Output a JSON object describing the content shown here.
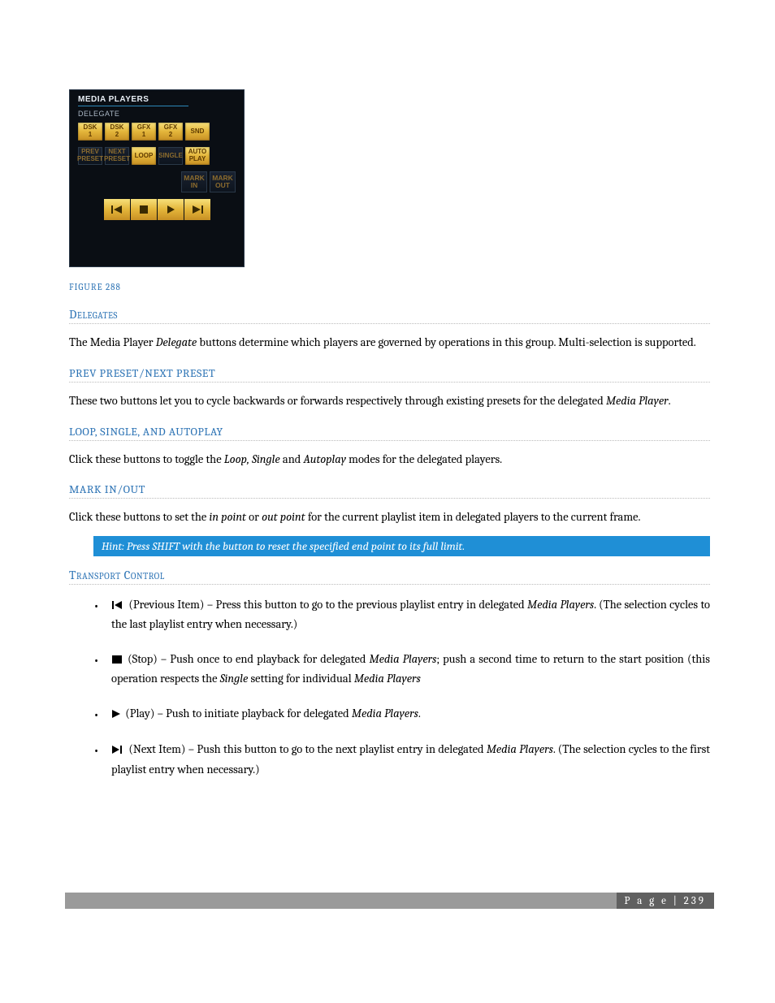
{
  "panel": {
    "title": "MEDIA PLAYERS",
    "subtitle": "DELEGATE",
    "row1": [
      {
        "l1": "DSK",
        "l2": "1",
        "style": "lit"
      },
      {
        "l1": "DSK",
        "l2": "2",
        "style": "lit"
      },
      {
        "l1": "GFX",
        "l2": "1",
        "style": "lit"
      },
      {
        "l1": "GFX",
        "l2": "2",
        "style": "lit"
      },
      {
        "l1": "SND",
        "l2": "",
        "style": "lit"
      }
    ],
    "row2": [
      {
        "l1": "PREV",
        "l2": "PRESET",
        "style": "dark"
      },
      {
        "l1": "NEXT",
        "l2": "PRESET",
        "style": "dark"
      },
      {
        "l1": "LOOP",
        "l2": "",
        "style": "lit"
      },
      {
        "l1": "SINGLE",
        "l2": "",
        "style": "dark"
      },
      {
        "l1": "AUTO",
        "l2": "PLAY",
        "style": "lit"
      }
    ],
    "row3": [
      {
        "l1": "MARK",
        "l2": "IN",
        "style": "dark"
      },
      {
        "l1": "MARK",
        "l2": "OUT",
        "style": "dark"
      }
    ],
    "transport_icons": [
      "prev",
      "stop",
      "play",
      "next"
    ],
    "colors": {
      "lit": "#e3b53a",
      "dark": "#0d141e",
      "panel_bg": "#0a0e14"
    }
  },
  "caption": "FIGURE 288",
  "sections": {
    "delegates": {
      "title": "Delegates",
      "body": "The Media Player Delegate buttons determine which players are governed by operations in this group. Multi-selection is supported."
    },
    "prev_next": {
      "title": "PREV PRESET/NEXT PRESET",
      "body": "These two buttons let you to cycle backwards or forwards respectively through existing presets for the delegated Media Player."
    },
    "loop": {
      "title": "LOOP, SINGLE, AND AUTOPLAY",
      "body": "Click these buttons to toggle the Loop, Single and Autoplay modes for the delegated players."
    },
    "mark": {
      "title": "MARK IN/OUT",
      "body": "Click these buttons to set the in point or out point for the current playlist item in delegated players to the current frame."
    },
    "hint": "Hint: Press SHIFT with the button to reset the specified end point to its full limit.",
    "transport": {
      "title": "Transport Control",
      "items": [
        {
          "icon": "prev",
          "text": " (Previous Item) – Press this button to go to the previous playlist entry in delegated Media Players. (The selection cycles to the last playlist entry when necessary.)"
        },
        {
          "icon": "stop",
          "text": " (Stop) – Push once to end playback for delegated Media Players; push a second time to return to the start position (this operation respects the Single setting for individual Media Players"
        },
        {
          "icon": "play",
          "text": " (Play) – Push to initiate playback for delegated Media Players."
        },
        {
          "icon": "next",
          "text": " (Next Item) – Push this button to go to the next playlist entry in delegated Media Players. (The selection cycles to the first playlist entry when necessary.)"
        }
      ]
    }
  },
  "footer": {
    "label": "P a g e",
    "num": "239"
  }
}
